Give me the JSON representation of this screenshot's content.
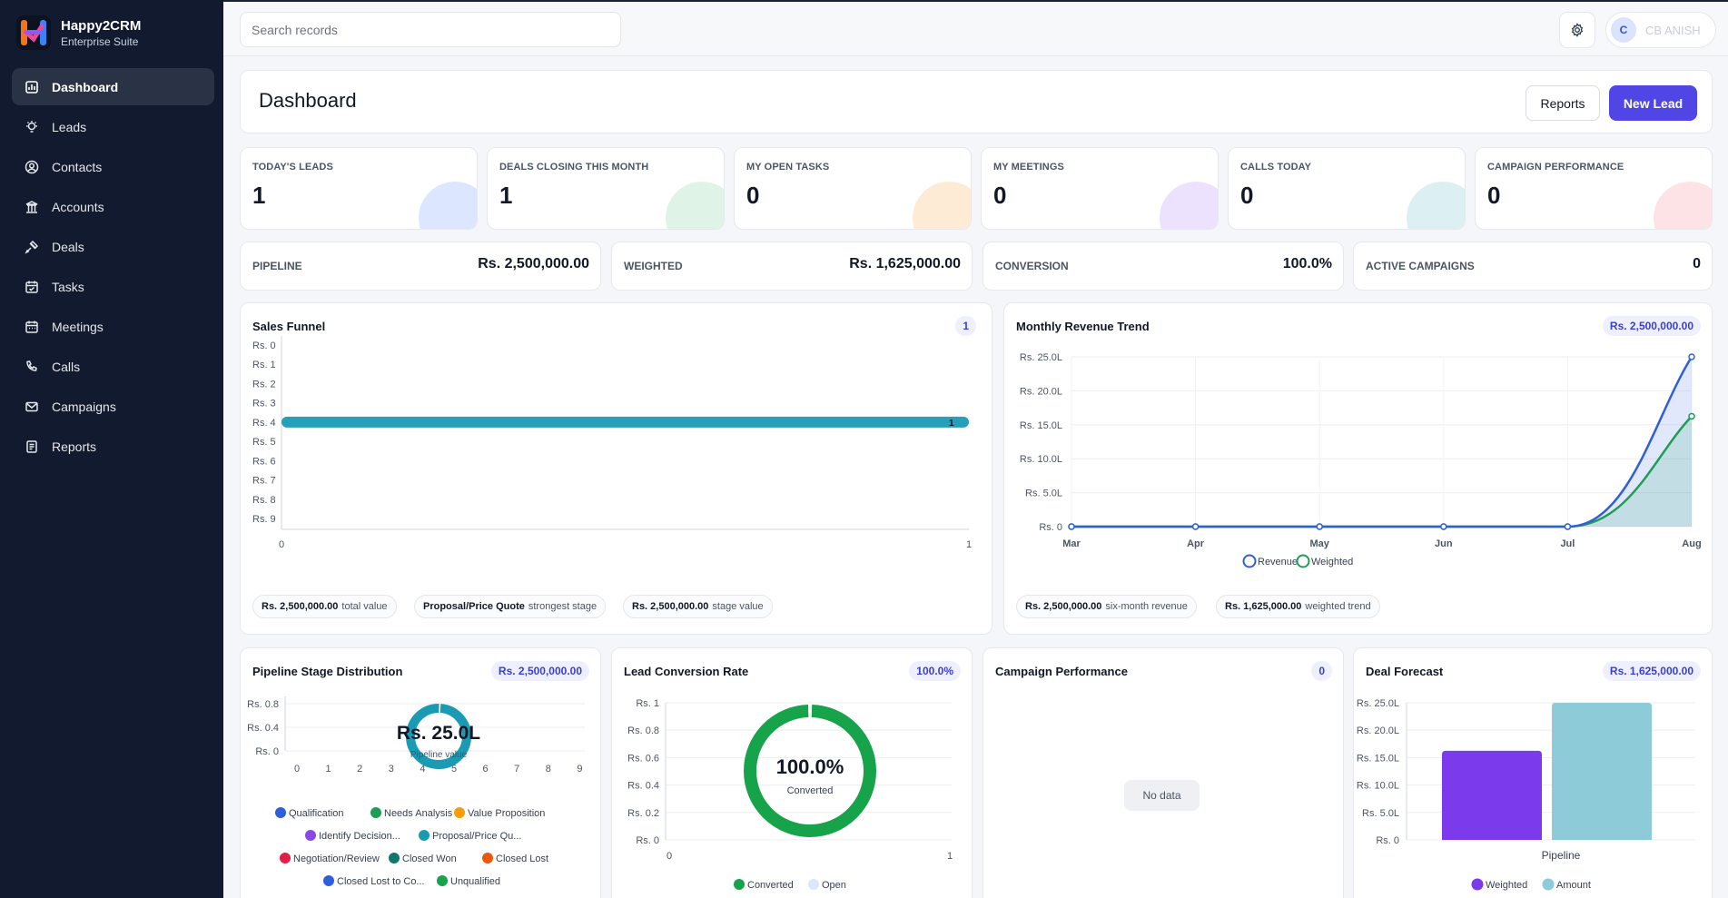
{
  "brand": {
    "name": "Happy2CRM",
    "subtitle": "Enterprise Suite"
  },
  "nav": [
    {
      "label": "Dashboard",
      "icon": "chart-bar-icon",
      "active": true
    },
    {
      "label": "Leads",
      "icon": "lightbulb-icon"
    },
    {
      "label": "Contacts",
      "icon": "user-circle-icon"
    },
    {
      "label": "Accounts",
      "icon": "building-icon"
    },
    {
      "label": "Deals",
      "icon": "handshake-icon"
    },
    {
      "label": "Tasks",
      "icon": "calendar-check-icon"
    },
    {
      "label": "Meetings",
      "icon": "calendar-icon"
    },
    {
      "label": "Calls",
      "icon": "phone-icon"
    },
    {
      "label": "Campaigns",
      "icon": "envelope-icon"
    },
    {
      "label": "Reports",
      "icon": "document-icon"
    }
  ],
  "topbar": {
    "search_placeholder": "Search records",
    "avatar_initial": "C",
    "user_name": "CB ANISH"
  },
  "header": {
    "title": "Dashboard",
    "reports_label": "Reports",
    "new_lead_label": "New Lead"
  },
  "stats": [
    {
      "label": "TODAY'S LEADS",
      "value": "1",
      "color": "#dde6ff"
    },
    {
      "label": "DEALS CLOSING THIS MONTH",
      "value": "1",
      "color": "#dff3e6"
    },
    {
      "label": "MY OPEN TASKS",
      "value": "0",
      "color": "#fdebd6"
    },
    {
      "label": "MY MEETINGS",
      "value": "0",
      "color": "#ece2fd"
    },
    {
      "label": "CALLS TODAY",
      "value": "0",
      "color": "#dcf0f3"
    },
    {
      "label": "CAMPAIGN PERFORMANCE",
      "value": "0",
      "color": "#fde2e6"
    }
  ],
  "kpis": [
    {
      "label": "PIPELINE",
      "value": "Rs. 2,500,000.00"
    },
    {
      "label": "WEIGHTED",
      "value": "Rs. 1,625,000.00"
    },
    {
      "label": "CONVERSION",
      "value": "100.0%"
    },
    {
      "label": "ACTIVE CAMPAIGNS",
      "value": "0"
    }
  ],
  "funnel": {
    "title": "Sales Funnel",
    "badge": "1",
    "pills": [
      {
        "value": "Rs. 2,500,000.00",
        "label": "total value"
      },
      {
        "value": "Proposal/Price Quote",
        "label": "strongest stage"
      },
      {
        "value": "Rs. 2,500,000.00",
        "label": "stage value"
      }
    ]
  },
  "revenue": {
    "title": "Monthly Revenue Trend",
    "badge": "Rs. 2,500,000.00",
    "pills": [
      {
        "value": "Rs. 2,500,000.00",
        "label": "six-month revenue"
      },
      {
        "value": "Rs. 1,625,000.00",
        "label": "weighted trend"
      }
    ]
  },
  "pipeline_dist": {
    "title": "Pipeline Stage Distribution",
    "badge": "Rs. 2,500,000.00",
    "center_value": "Rs. 25.0L",
    "center_label": "Pipeline value"
  },
  "conversion": {
    "title": "Lead Conversion Rate",
    "badge": "100.0%",
    "center_value": "100.0%",
    "center_label": "Converted"
  },
  "campaign": {
    "title": "Campaign Performance",
    "badge": "0",
    "empty_label": "No data"
  },
  "forecast": {
    "title": "Deal Forecast",
    "badge": "Rs. 1,625,000.00"
  },
  "chart_data": [
    {
      "id": "funnel",
      "type": "bar",
      "orientation": "horizontal",
      "categories": [
        "Rs. 0",
        "Rs. 1",
        "Rs. 2",
        "Rs. 3",
        "Rs. 4",
        "Rs. 5",
        "Rs. 6",
        "Rs. 7",
        "Rs. 8",
        "Rs. 9"
      ],
      "values": [
        0,
        0,
        0,
        0,
        1,
        0,
        0,
        0,
        0,
        0
      ],
      "data_labels": [
        "",
        "",
        "",
        "",
        "1",
        "",
        "",
        "",
        "",
        ""
      ],
      "xlim": [
        0,
        1
      ],
      "x_ticks": [
        "0",
        "1"
      ],
      "color": "#26a0b8"
    },
    {
      "id": "revenue",
      "type": "area",
      "x": [
        "Mar",
        "Apr",
        "May",
        "Jun",
        "Jul",
        "Aug"
      ],
      "ylim": [
        0,
        25
      ],
      "y_ticks": [
        "Rs. 0",
        "Rs. 5.0L",
        "Rs. 10.0L",
        "Rs. 15.0L",
        "Rs. 20.0L",
        "Rs. 25.0L"
      ],
      "series": [
        {
          "name": "Revenue",
          "values": [
            0,
            0,
            0,
            0,
            0,
            25
          ],
          "color": "#2f5fd8"
        },
        {
          "name": "Weighted",
          "values": [
            0,
            0,
            0,
            0,
            0,
            16.25
          ],
          "color": "#1f9d55"
        }
      ],
      "legend": "bottom"
    },
    {
      "id": "pipeline_dist",
      "type": "pie",
      "y_ticks": [
        "Rs. 0",
        "Rs. 0.4",
        "Rs. 0.8"
      ],
      "x_ticks": [
        "0",
        "1",
        "2",
        "3",
        "4",
        "5",
        "6",
        "7",
        "8",
        "9"
      ],
      "slices": [
        {
          "name": "Qualification",
          "value": 0,
          "color": "#2f5fd8"
        },
        {
          "name": "Needs Analysis",
          "value": 0,
          "color": "#1f9d55"
        },
        {
          "name": "Value Proposition",
          "value": 0,
          "color": "#f59e0b"
        },
        {
          "name": "Identify Decision...",
          "value": 0,
          "color": "#8b47e8"
        },
        {
          "name": "Proposal/Price Qu...",
          "value": 25,
          "color": "#1a9bb3"
        },
        {
          "name": "Negotiation/Review",
          "value": 0,
          "color": "#e11d48"
        },
        {
          "name": "Closed Won",
          "value": 0,
          "color": "#0f766e"
        },
        {
          "name": "Closed Lost",
          "value": 0,
          "color": "#ea580c"
        },
        {
          "name": "Closed Lost to Co...",
          "value": 0,
          "color": "#2f5fd8"
        },
        {
          "name": "Unqualified",
          "value": 0,
          "color": "#16a34a"
        }
      ],
      "legend": "bottom"
    },
    {
      "id": "conversion",
      "type": "pie",
      "y_ticks": [
        "Rs. 0",
        "Rs. 0.2",
        "Rs. 0.4",
        "Rs. 0.6",
        "Rs. 0.8",
        "Rs. 1"
      ],
      "x_ticks": [
        "0",
        "1"
      ],
      "slices": [
        {
          "name": "Converted",
          "value": 100,
          "color": "#16a34a"
        },
        {
          "name": "Open",
          "value": 0,
          "color": "#dbe7fb"
        }
      ],
      "legend": "bottom"
    },
    {
      "id": "forecast",
      "type": "bar",
      "categories": [
        "Pipeline"
      ],
      "ylim": [
        0,
        25
      ],
      "y_ticks": [
        "Rs. 0",
        "Rs. 5.0L",
        "Rs. 10.0L",
        "Rs. 15.0L",
        "Rs. 20.0L",
        "Rs. 25.0L"
      ],
      "series": [
        {
          "name": "Weighted",
          "values": [
            16.25
          ],
          "color": "#7c3aed"
        },
        {
          "name": "Amount",
          "values": [
            25
          ],
          "color": "#8ecbd8"
        }
      ],
      "legend": "bottom"
    }
  ]
}
